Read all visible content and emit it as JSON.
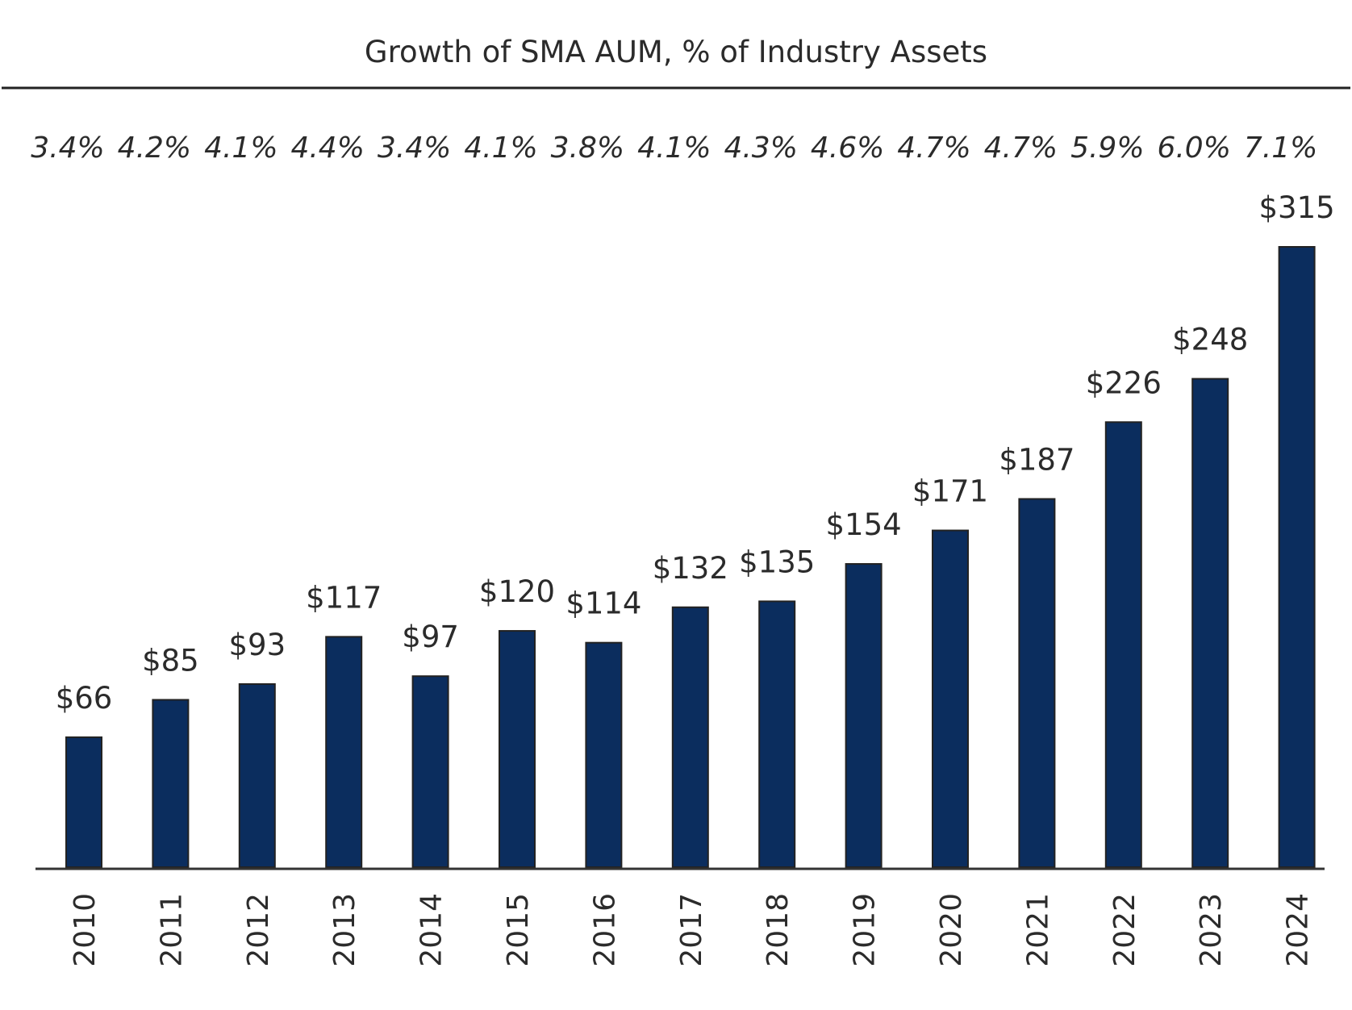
{
  "chart_data": {
    "type": "bar",
    "title": "Growth of SMA AUM, % of Industry Assets",
    "categories": [
      "2010",
      "2011",
      "2012",
      "2013",
      "2014",
      "2015",
      "2016",
      "2017",
      "2018",
      "2019",
      "2020",
      "2021",
      "2022",
      "2023",
      "2024"
    ],
    "values": [
      66,
      85,
      93,
      117,
      97,
      120,
      114,
      132,
      135,
      154,
      171,
      187,
      226,
      248,
      315
    ],
    "value_labels": [
      "$66",
      "$85",
      "$93",
      "$117",
      "$97",
      "$120",
      "$114",
      "$132",
      "$135",
      "$154",
      "$171",
      "$187",
      "$226",
      "$248",
      "$315"
    ],
    "percent_labels": [
      "3.4%",
      "4.2%",
      "4.1%",
      "4.4%",
      "3.4%",
      "4.1%",
      "3.8%",
      "4.1%",
      "4.3%",
      "4.6%",
      "4.7%",
      "4.7%",
      "5.9%",
      "6.0%",
      "7.1%"
    ],
    "xlabel": "",
    "ylabel": "",
    "ylim": [
      0,
      315
    ],
    "grid": false,
    "bar_color": "#0b2d5e"
  }
}
